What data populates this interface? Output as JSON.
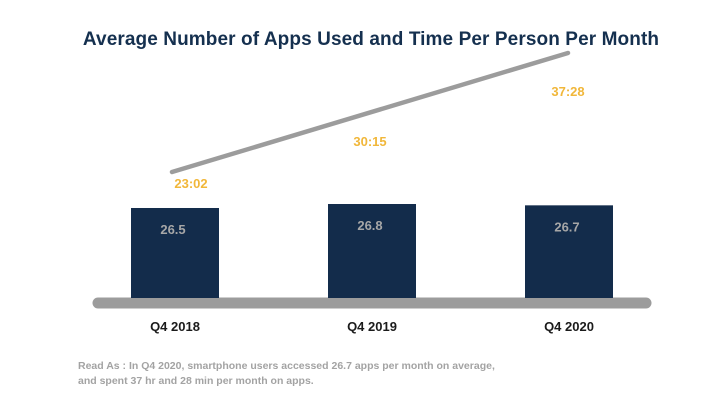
{
  "chart_data": {
    "type": "bar",
    "title": "Average Number of Apps Used and Time Per Person Per Month",
    "categories": [
      "Q4 2018",
      "Q4 2019",
      "Q4 2020"
    ],
    "series": [
      {
        "values": [
          26.5,
          26.8,
          26.7
        ],
        "labels": [
          "26.5",
          "26.8",
          "26.7"
        ],
        "type": "bar"
      },
      {
        "values": [
          23.03,
          30.25,
          37.47
        ],
        "labels": [
          "23:02",
          "30:15",
          "37:28"
        ],
        "type": "line"
      }
    ],
    "colors": {
      "bar": "#132c4b",
      "bar_label": "#a7a7a7",
      "line": "#9c9c9c",
      "line_label": "#f1b73a",
      "baseline": "#9c9c9c",
      "category": "#1b1b1b"
    },
    "grid": false,
    "legend": "none"
  },
  "footnote": [
    "Read As : In Q4 2020, smartphone users accessed 26.7 apps per month on average,",
    "and spent 37 hr and 28 min per month on apps."
  ]
}
